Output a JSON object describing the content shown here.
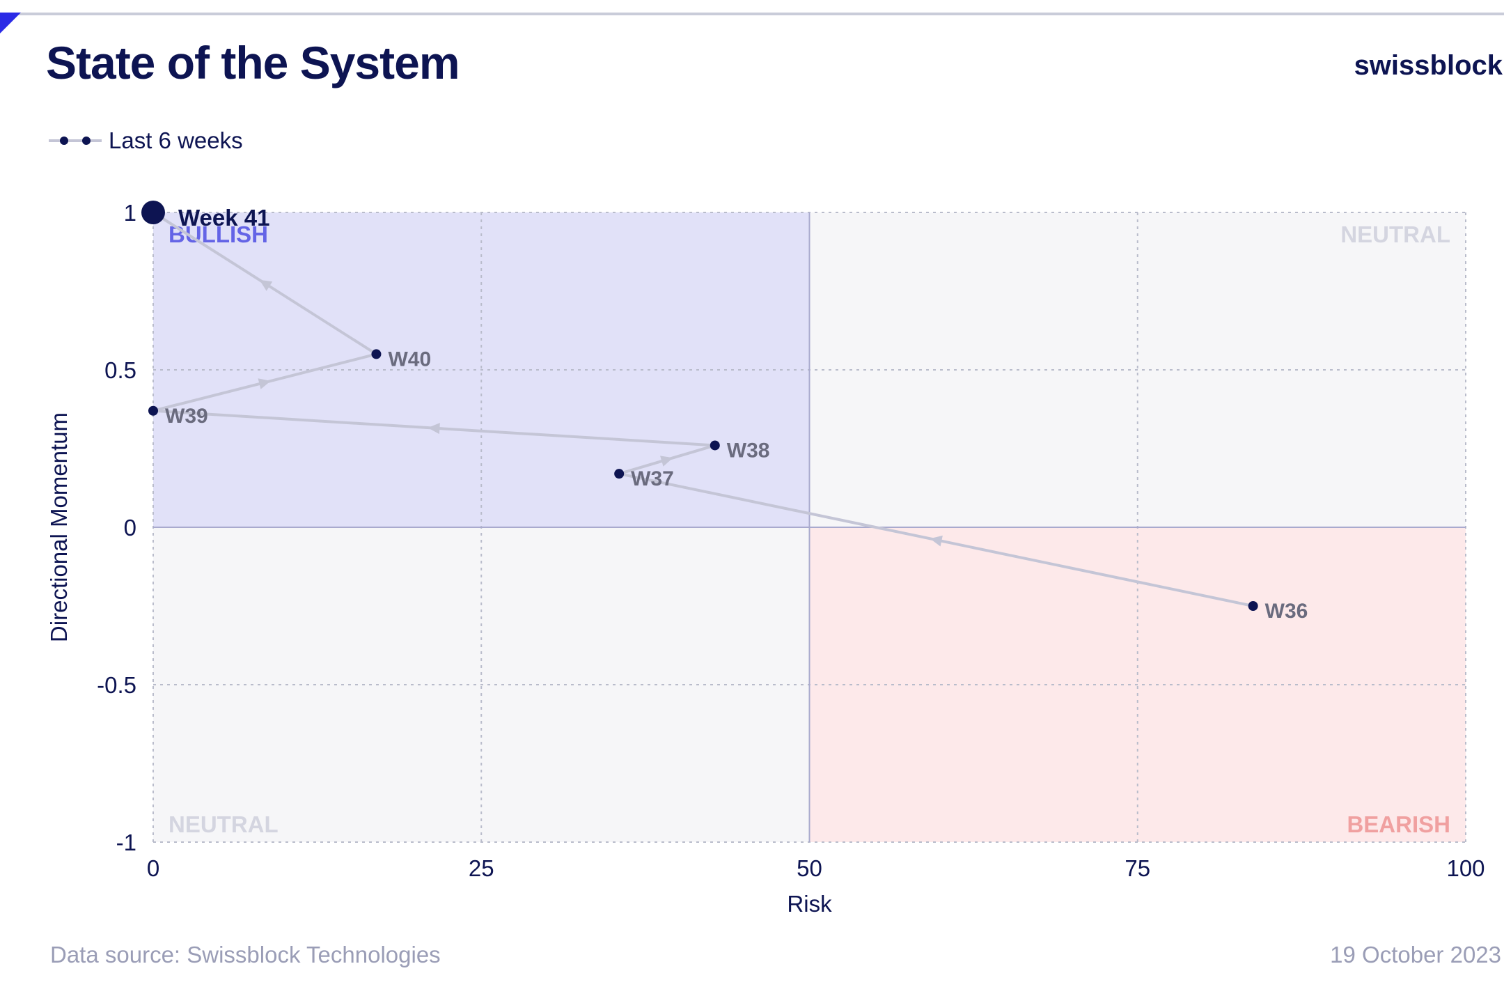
{
  "header": {
    "title": "State of the System",
    "brand": "swissblock"
  },
  "legend": {
    "label": "Last 6 weeks"
  },
  "footer": {
    "source": "Data source: Swissblock Technologies",
    "date": "19 October 2023"
  },
  "colors": {
    "bullish_fill": "#e1e1f8",
    "bearish_fill": "#fde9ea",
    "neutral_fill": "#f6f6f8",
    "path": "#c4c5d6",
    "point": "#0d1452",
    "bullish_text": "#6464e6",
    "bearish_text": "#f0a0a0",
    "neutral_text": "#d4d5e0"
  },
  "chart_data": {
    "type": "scatter",
    "xlabel": "Risk",
    "ylabel": "Directional Momentum",
    "xlim": [
      0,
      100
    ],
    "ylim": [
      -1,
      1
    ],
    "xticks": [
      0,
      25,
      50,
      75,
      100
    ],
    "yticks": [
      1,
      0.5,
      0,
      -0.5,
      -1
    ],
    "ytick_labels": [
      "1",
      "0.5",
      "0",
      "-0.5",
      "-1"
    ],
    "grid": true,
    "quadrants": [
      {
        "label": "BULLISH",
        "x": [
          0,
          50
        ],
        "y": [
          0,
          1
        ]
      },
      {
        "label": "NEUTRAL",
        "x": [
          50,
          100
        ],
        "y": [
          0,
          1
        ]
      },
      {
        "label": "NEUTRAL",
        "x": [
          0,
          50
        ],
        "y": [
          -1,
          0
        ]
      },
      {
        "label": "BEARISH",
        "x": [
          50,
          100
        ],
        "y": [
          -1,
          0
        ]
      }
    ],
    "series": [
      {
        "name": "Last 6 weeks",
        "points": [
          {
            "label": "W36",
            "x": 83.8,
            "y": -0.25
          },
          {
            "label": "W37",
            "x": 35.5,
            "y": 0.17
          },
          {
            "label": "W38",
            "x": 42.8,
            "y": 0.26
          },
          {
            "label": "W39",
            "x": 0.0,
            "y": 0.37
          },
          {
            "label": "W40",
            "x": 17.0,
            "y": 0.55
          },
          {
            "label": "Week 41",
            "x": 0.0,
            "y": 1.0
          }
        ]
      }
    ]
  }
}
